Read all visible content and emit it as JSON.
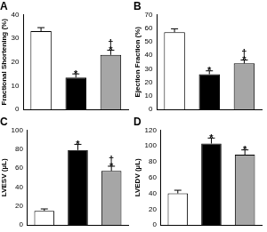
{
  "chart_data": [
    {
      "type": "bar",
      "title": "A",
      "y_label": "Fractional Shortening (%)",
      "categories": [
        null,
        null,
        null
      ],
      "values": [
        33,
        13.5,
        23
      ],
      "errors": [
        1.5,
        1.5,
        2
      ],
      "colors": [
        "#ffffff",
        "#000000",
        "#a6a6a6"
      ],
      "annotations": [
        {
          "bar": 1,
          "texts": [
            "*"
          ]
        },
        {
          "bar": 2,
          "texts": [
            "*",
            "†"
          ]
        }
      ],
      "ylim": [
        0,
        40
      ],
      "yticks": [
        0,
        10,
        20,
        30,
        40
      ],
      "grid": false,
      "tick_labels": "y"
    },
    {
      "type": "bar",
      "title": "B",
      "y_label": "Ejection Fraction (%)",
      "categories": [
        null,
        null,
        null
      ],
      "values": [
        57,
        26,
        34
      ],
      "errors": [
        2.5,
        2.5,
        2.5
      ],
      "colors": [
        "#ffffff",
        "#000000",
        "#a6a6a6"
      ],
      "annotations": [
        {
          "bar": 1,
          "texts": [
            "*"
          ]
        },
        {
          "bar": 2,
          "texts": [
            "*",
            "†"
          ]
        }
      ],
      "ylim": [
        0,
        70
      ],
      "yticks": [
        0,
        10,
        20,
        30,
        40,
        50,
        60,
        70
      ],
      "grid": false,
      "tick_labels": "y"
    },
    {
      "type": "bar",
      "title": "C",
      "y_label": "LVESV (µL)",
      "categories": [
        null,
        null,
        null
      ],
      "values": [
        15,
        79,
        57
      ],
      "errors": [
        2,
        6,
        5
      ],
      "colors": [
        "#ffffff",
        "#000000",
        "#a6a6a6"
      ],
      "annotations": [
        {
          "bar": 1,
          "texts": [
            "*"
          ]
        },
        {
          "bar": 2,
          "texts": [
            "*",
            "†"
          ]
        }
      ],
      "ylim": [
        0,
        100
      ],
      "yticks": [
        0,
        20,
        40,
        60,
        80,
        100
      ],
      "grid": false,
      "tick_labels": "y"
    },
    {
      "type": "bar",
      "title": "D",
      "y_label": "LVEDV (µL)",
      "categories": [
        null,
        null,
        null
      ],
      "values": [
        40,
        103,
        89
      ],
      "errors": [
        4,
        7,
        6
      ],
      "colors": [
        "#ffffff",
        "#000000",
        "#a6a6a6"
      ],
      "annotations": [
        {
          "bar": 1,
          "texts": [
            "*"
          ]
        },
        {
          "bar": 2,
          "texts": [
            "*"
          ]
        }
      ],
      "ylim": [
        0,
        120
      ],
      "yticks": [
        0,
        20,
        40,
        60,
        80,
        100,
        120
      ],
      "grid": false,
      "tick_labels": "y"
    }
  ]
}
